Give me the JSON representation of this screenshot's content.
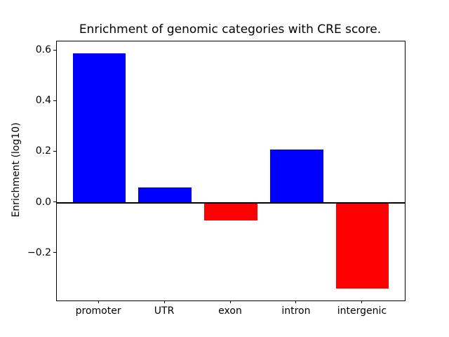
{
  "figure": {
    "background_color": "#ffffff"
  },
  "chart_data": {
    "type": "bar",
    "title": "Enrichment of genomic categories with CRE score.",
    "xlabel": "",
    "ylabel": "Enrichment (log10)",
    "categories": [
      "promoter",
      "UTR",
      "exon",
      "intron",
      "intergenic"
    ],
    "values": [
      0.59,
      0.06,
      -0.07,
      0.21,
      -0.34
    ],
    "bar_colors": [
      "#0000ff",
      "#0000ff",
      "#ff0000",
      "#0000ff",
      "#ff0000"
    ],
    "positive_color": "#0000ff",
    "negative_color": "#ff0000",
    "yticks": [
      0.6,
      0.4,
      0.2,
      0.0,
      -0.2
    ],
    "ytick_labels": [
      "0.6",
      "0.4",
      "0.2",
      "0.0",
      "−0.2"
    ],
    "ylim": [
      -0.3865,
      0.6365
    ],
    "xlim": [
      -0.64,
      4.64
    ],
    "bar_width_fraction": 0.8,
    "zero_line": true,
    "grid": false,
    "legend": false,
    "axis_color": "#000000",
    "text_color": "#000000"
  }
}
